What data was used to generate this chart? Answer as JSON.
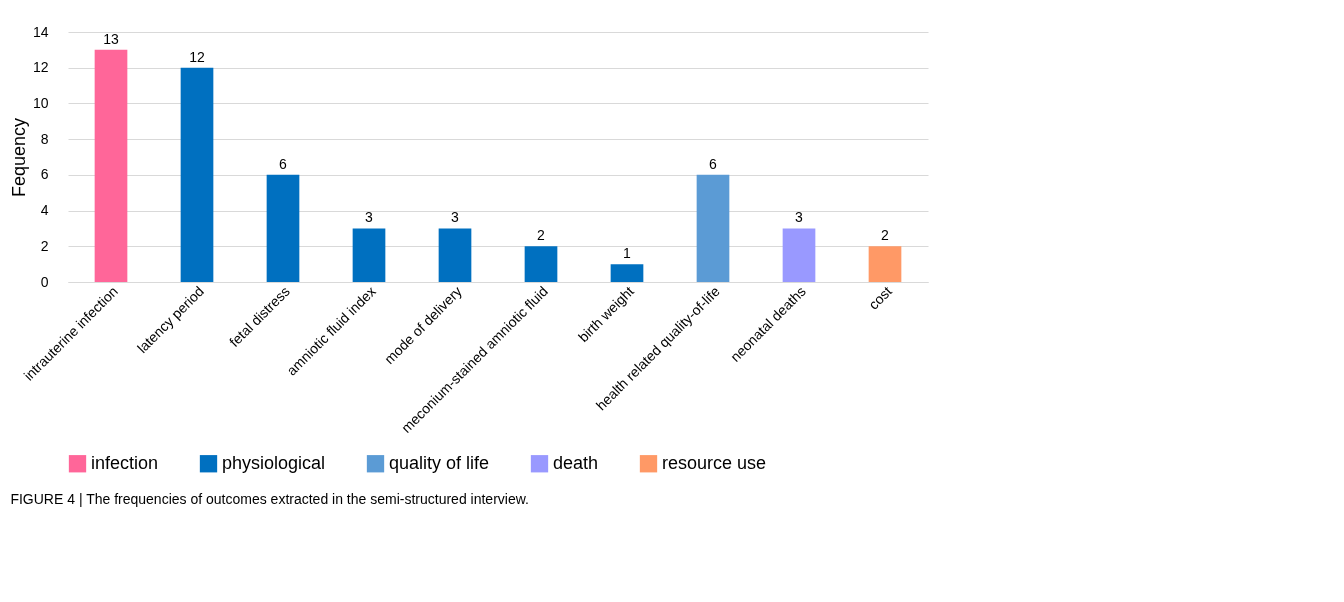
{
  "chart_data": {
    "type": "bar",
    "ylabel": "Fequency",
    "categories": [
      "intrauterine infection",
      "latency period",
      "fetal distress",
      "amniotic fluid index",
      "mode of delivery",
      "meconium-stained amniotic fluid",
      "birth weight",
      "health related quality-of-life",
      "neonatal deaths",
      "cost"
    ],
    "series": [
      {
        "name": "infection",
        "color": "#ff6699",
        "values": [
          13,
          null,
          null,
          null,
          null,
          null,
          null,
          null,
          null,
          null
        ]
      },
      {
        "name": "physiological",
        "color": "#0070c0",
        "values": [
          null,
          12,
          6,
          3,
          3,
          2,
          1,
          null,
          null,
          null
        ]
      },
      {
        "name": "quality of life",
        "color": "#5b9bd5",
        "values": [
          null,
          null,
          null,
          null,
          null,
          null,
          null,
          6,
          null,
          null
        ]
      },
      {
        "name": "death",
        "color": "#9999ff",
        "values": [
          null,
          null,
          null,
          null,
          null,
          null,
          null,
          null,
          3,
          null
        ]
      },
      {
        "name": "resource use",
        "color": "#ff9966",
        "values": [
          null,
          null,
          null,
          null,
          null,
          null,
          null,
          null,
          null,
          2
        ]
      }
    ],
    "ylim": [
      0,
      14
    ],
    "yticks": [
      0,
      2,
      4,
      6,
      8,
      10,
      12,
      14
    ],
    "grid": "y",
    "data_labels": true,
    "legend": "bottom",
    "annotations": [
      "FIGURE 4 | The frequencies of outcomes extracted in the semi-structured interview."
    ]
  }
}
